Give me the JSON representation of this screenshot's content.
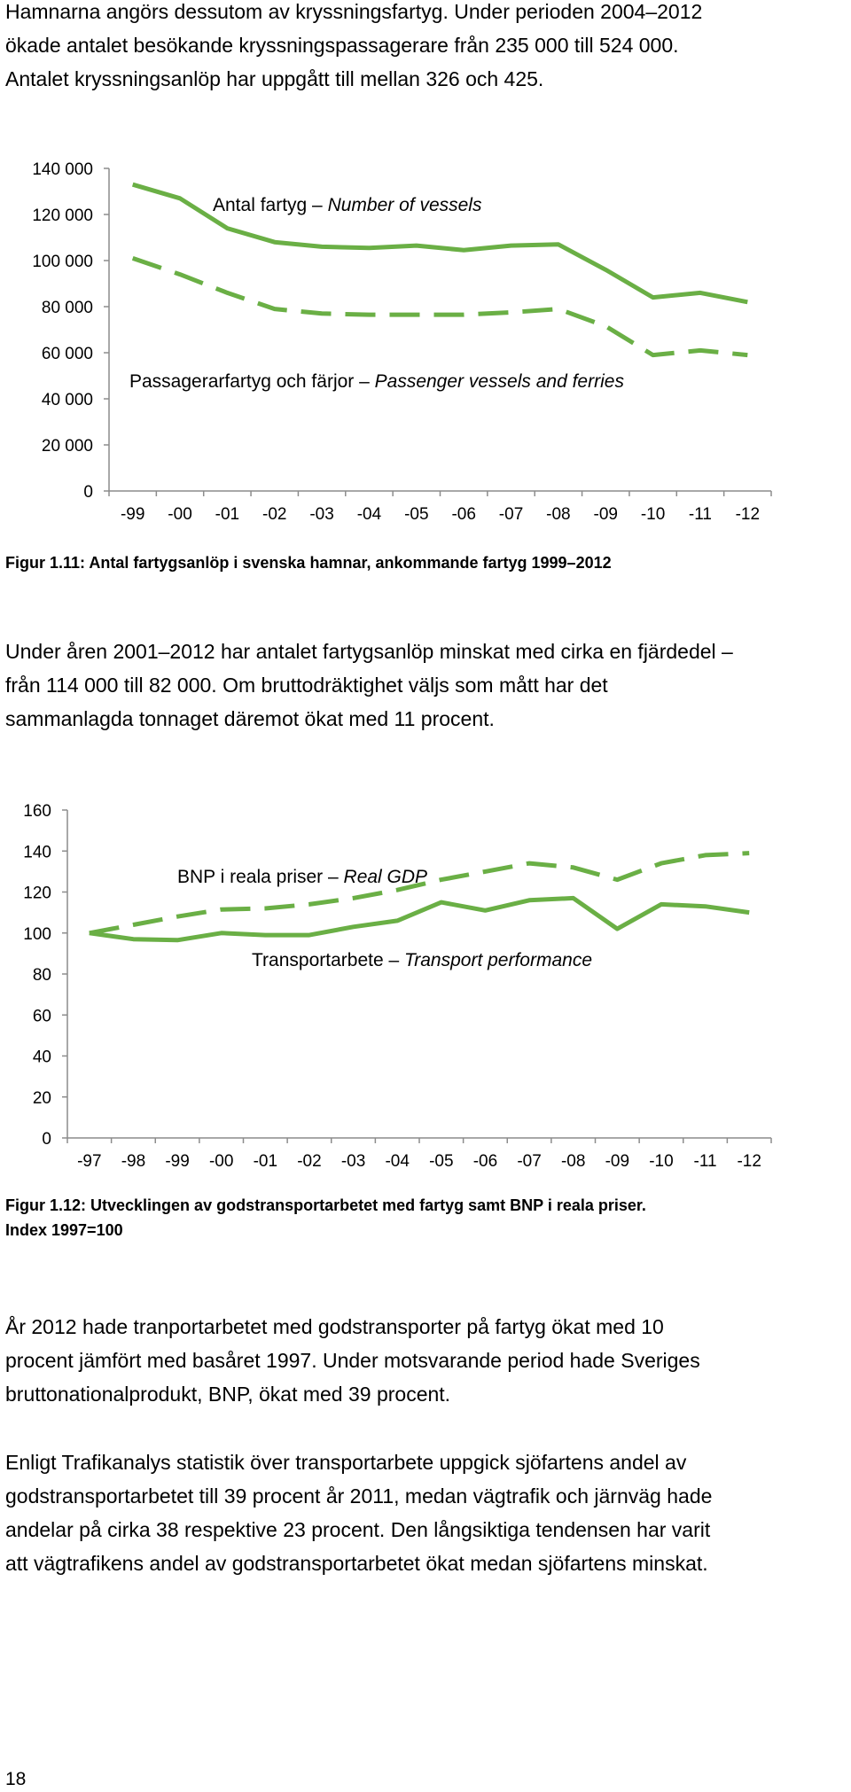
{
  "paragraphs": {
    "p1": [
      "Hamnarna angörs dessutom av kryssningsfartyg. Under perioden 2004–2012",
      "ökade antalet besökande kryssningspassagerare från 235 000 till 524 000.",
      "Antalet kryssningsanlöp har uppgått till mellan 326 och 425."
    ],
    "p2": [
      "Under åren 2001–2012 har antalet fartygsanlöp minskat med cirka en fjärdedel –",
      "från 114 000 till 82 000. Om bruttodräktighet väljs som mått har det",
      "sammanlagda tonnaget däremot ökat med 11 procent."
    ],
    "p3": [
      "År 2012 hade tranportarbetet med godstransporter på fartyg ökat med 10",
      "procent jämfört med basåret 1997. Under motsvarande period hade Sveriges",
      "bruttonationalprodukt, BNP, ökat med 39 procent."
    ],
    "p4": [
      "Enligt Trafikanalys statistik över transportarbete uppgick sjöfartens andel av",
      "godstransportarbetet till 39 procent år 2011, medan vägtrafik och järnväg hade",
      "andelar på cirka 38 respektive 23 procent. Den långsiktiga tendensen har varit",
      "att vägtrafikens andel av godstransportarbetet ökat medan sjöfartens minskat."
    ]
  },
  "captions": {
    "fig1": "Figur 1.11: Antal fartygsanlöp i svenska hamnar, ankommande fartyg 1999–2012",
    "fig2_line1": "Figur 1.12: Utvecklingen av godstransportarbetet med fartyg samt BNP i reala priser.",
    "fig2_line2": "Index 1997=100"
  },
  "page_number": "18",
  "colors": {
    "series": "#6aaf45",
    "axis": "#8c8c8c"
  },
  "chart_data": [
    {
      "type": "line",
      "title": "",
      "xlabel": "",
      "ylabel": "",
      "categories": [
        "-99",
        "-00",
        "-01",
        "-02",
        "-03",
        "-04",
        "-05",
        "-06",
        "-07",
        "-08",
        "-09",
        "-10",
        "-11",
        "-12"
      ],
      "ylim": [
        0,
        140000
      ],
      "yticks": [
        0,
        20000,
        40000,
        60000,
        80000,
        100000,
        120000,
        140000
      ],
      "ytick_labels": [
        "0",
        "20 000",
        "40 000",
        "60 000",
        "80 000",
        "100 000",
        "120 000",
        "140 000"
      ],
      "grid": false,
      "legend": "none",
      "series": [
        {
          "label_main": "Antal fartyg – ",
          "label_italic": "Number of vessels",
          "style": "solid",
          "values": [
            133000,
            127000,
            114000,
            108000,
            106000,
            105500,
            106500,
            104500,
            106500,
            107000,
            96000,
            84000,
            86000,
            82000
          ]
        },
        {
          "label_main": "Passagerarfartyg och färjor – ",
          "label_italic": "Passenger vessels and ferries",
          "style": "dashed",
          "values": [
            101000,
            94000,
            86000,
            79000,
            77000,
            76500,
            76500,
            76500,
            77500,
            79000,
            71500,
            59000,
            61000,
            59000
          ]
        }
      ]
    },
    {
      "type": "line",
      "title": "",
      "xlabel": "",
      "ylabel": "",
      "categories": [
        "-97",
        "-98",
        "-99",
        "-00",
        "-01",
        "-02",
        "-03",
        "-04",
        "-05",
        "-06",
        "-07",
        "-08",
        "-09",
        "-10",
        "-11",
        "-12"
      ],
      "ylim": [
        0,
        160
      ],
      "yticks": [
        0,
        20,
        40,
        60,
        80,
        100,
        120,
        140,
        160
      ],
      "ytick_labels": [
        "0",
        "20",
        "40",
        "60",
        "80",
        "100",
        "120",
        "140",
        "160"
      ],
      "grid": false,
      "legend": "none",
      "series": [
        {
          "label_main": "BNP i reala priser – ",
          "label_italic": "Real GDP",
          "style": "dashed",
          "values": [
            100,
            104,
            108,
            111.5,
            112,
            114,
            117,
            121,
            126,
            130,
            134,
            132,
            126,
            134,
            138,
            139
          ]
        },
        {
          "label_main": "Transportarbete – ",
          "label_italic": "Transport performance",
          "style": "solid",
          "values": [
            100,
            97,
            96.5,
            100,
            99,
            99,
            103,
            106,
            115,
            111,
            116,
            117,
            102,
            114,
            113,
            110
          ]
        }
      ]
    }
  ]
}
